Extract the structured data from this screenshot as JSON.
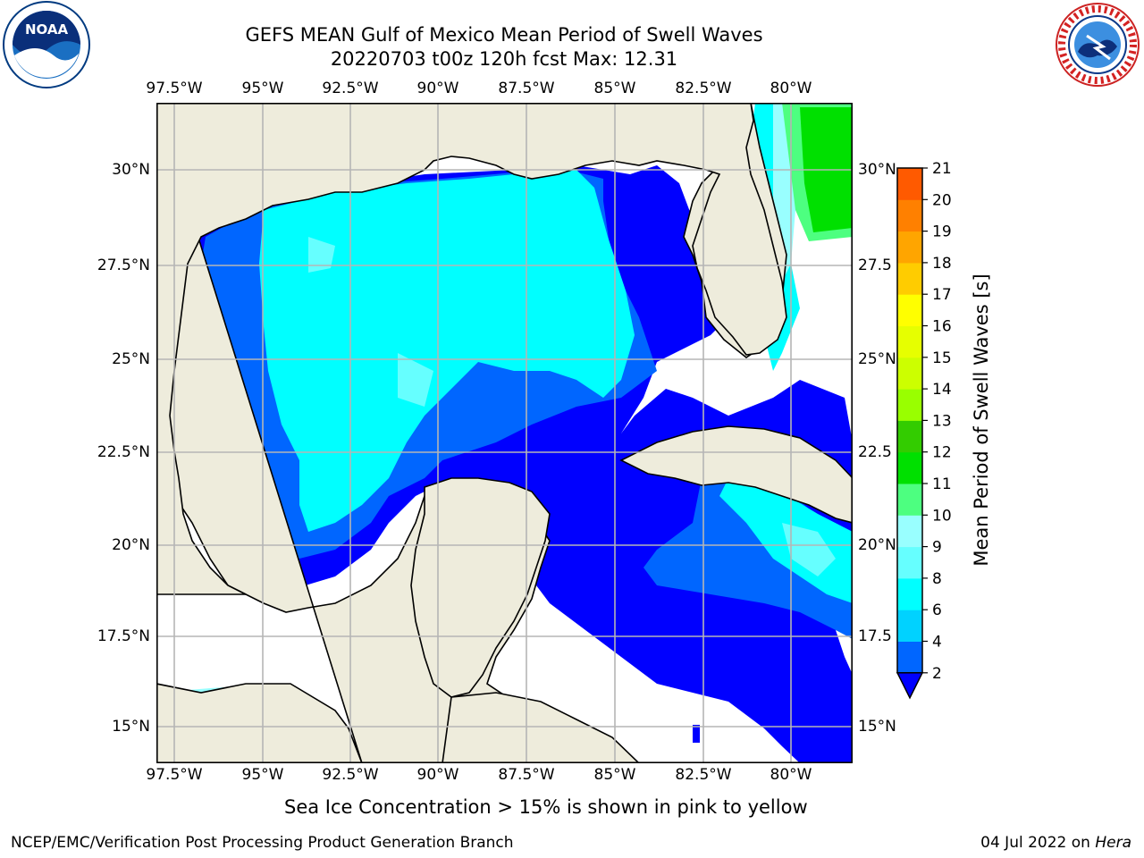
{
  "title": {
    "line1": "GEFS MEAN Gulf of Mexico Mean Period of Swell Waves",
    "line2": "20220703 t00z 120h fcst   Max: 12.31"
  },
  "map": {
    "lon_labels": [
      "97.5°W",
      "95°W",
      "92.5°W",
      "90°W",
      "87.5°W",
      "85°W",
      "82.5°W",
      "80°W"
    ],
    "lat_labels": [
      "30°N",
      "27.5°N",
      "25°N",
      "22.5°N",
      "20°N",
      "17.5°N",
      "15°N"
    ],
    "lat_labels_right": [
      "30°N",
      "27.5",
      "25°N",
      "22.5",
      "20°N",
      "17.5",
      "15°N"
    ],
    "colors": {
      "land": "#eeecdc",
      "ocean_nodata": "#ffffff",
      "grid": "#b5b5b5"
    }
  },
  "colorbar": {
    "label": "Mean Period of Swell Waves [s]",
    "ticks": [
      "2",
      "4",
      "6",
      "8",
      "9",
      "10",
      "11",
      "12",
      "13",
      "14",
      "15",
      "16",
      "17",
      "18",
      "19",
      "20",
      "21"
    ],
    "colors": [
      "#0066ff",
      "#00d2ff",
      "#00ffff",
      "#66ffff",
      "#99ffff",
      "#4dff80",
      "#00e000",
      "#33cc00",
      "#99ff00",
      "#ccff00",
      "#e6ff00",
      "#ffff00",
      "#ffcc00",
      "#ffa500",
      "#ff8000",
      "#ff5a00",
      "#ff2000",
      "#ff0000"
    ],
    "under_color": "#0000ff"
  },
  "note": "Sea Ice Concentration > 15% is shown in pink to yellow",
  "footer": {
    "left": "NCEP/EMC/Verification Post Processing Product Generation Branch",
    "right_prefix": "04 Jul 2022 on ",
    "right_host": "Hera"
  },
  "logos": {
    "left": "noaa-logo",
    "right": "national-weather-service-logo"
  }
}
